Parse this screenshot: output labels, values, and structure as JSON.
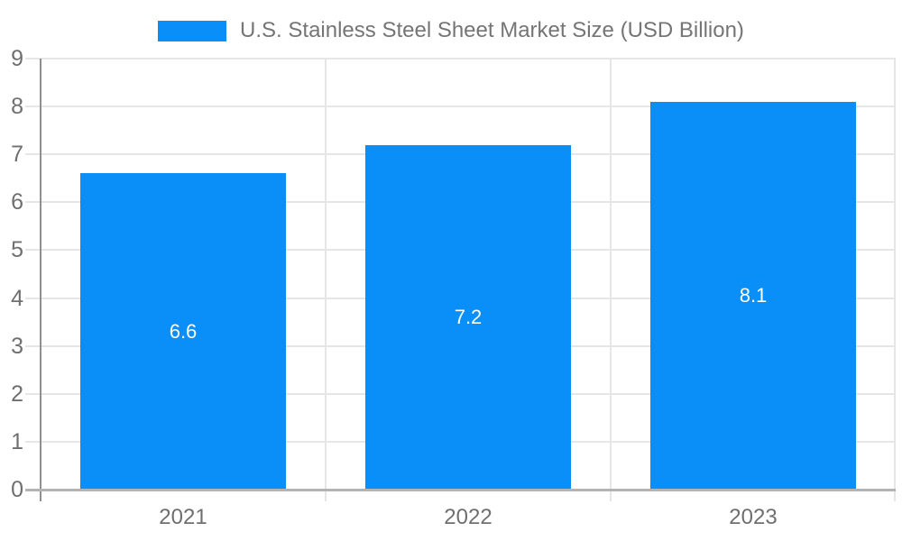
{
  "legend": {
    "label": "U.S. Stainless Steel Sheet Market Size (USD Billion)"
  },
  "chart_data": {
    "type": "bar",
    "title": "U.S. Stainless Steel Sheet Market Size (USD Billion)",
    "categories": [
      "2021",
      "2022",
      "2023"
    ],
    "series": [
      {
        "name": "U.S. Stainless Steel Sheet Market Size (USD Billion)",
        "values": [
          6.6,
          7.2,
          8.1
        ]
      }
    ],
    "values": [
      6.6,
      7.2,
      8.1
    ],
    "data_labels": [
      "6.6",
      "7.2",
      "8.1"
    ],
    "xlabel": "",
    "ylabel": "",
    "ylim": [
      0,
      9
    ],
    "y_ticks": [
      0,
      1,
      2,
      3,
      4,
      5,
      6,
      7,
      8,
      9
    ],
    "grid": true,
    "legend_position": "top"
  },
  "colors": {
    "bar": "#0a8ff9",
    "grid": "#e6e6e6",
    "axis_y": "#8f8f8f",
    "axis_x": "#b3b3b3",
    "axis_text": "#6f6f6f",
    "legend_text": "#757575",
    "value_label": "#ffffff",
    "background": "#ffffff"
  }
}
